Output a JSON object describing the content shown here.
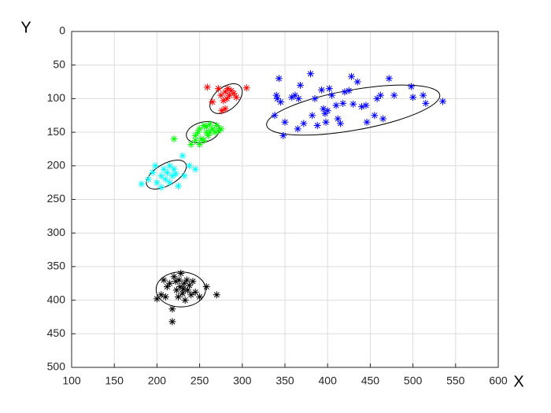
{
  "chart_data": {
    "type": "scatter",
    "x_label": "X",
    "y_label": "Y",
    "xlim": [
      100,
      600
    ],
    "ylim": [
      0,
      500
    ],
    "y_reversed": true,
    "xticks": [
      100,
      150,
      200,
      250,
      300,
      350,
      400,
      450,
      500,
      550,
      600
    ],
    "yticks": [
      0,
      50,
      100,
      150,
      200,
      250,
      300,
      350,
      400,
      450,
      500
    ],
    "grid": true,
    "marker": "asterisk",
    "series": [
      {
        "color": "#ff0000",
        "x": [
          259,
          265,
          272,
          275,
          278,
          280,
          283,
          285,
          287,
          290,
          293,
          305,
          276,
          280,
          282
        ],
        "y": [
          83,
          105,
          85,
          95,
          103,
          90,
          85,
          95,
          88,
          92,
          98,
          84,
          118,
          115,
          100
        ],
        "ellipse": {
          "cx": 281,
          "cy": 100,
          "rx": 22,
          "ry": 17,
          "angle": -40
        }
      },
      {
        "color": "#00ff00",
        "x": [
          220,
          240,
          245,
          248,
          250,
          252,
          255,
          258,
          260,
          262,
          265,
          268,
          270,
          272,
          250,
          255,
          258,
          262,
          245,
          275
        ],
        "y": [
          160,
          168,
          155,
          150,
          145,
          160,
          140,
          150,
          155,
          138,
          145,
          150,
          140,
          148,
          168,
          162,
          142,
          150,
          162,
          145
        ],
        "ellipse": {
          "cx": 254,
          "cy": 150,
          "rx": 20,
          "ry": 15,
          "angle": -15
        }
      },
      {
        "color": "#00ffff",
        "x": [
          182,
          190,
          195,
          198,
          200,
          205,
          208,
          210,
          212,
          215,
          218,
          220,
          222,
          225,
          230,
          232,
          238,
          245,
          205,
          215
        ],
        "y": [
          227,
          220,
          210,
          200,
          225,
          215,
          205,
          220,
          210,
          200,
          215,
          205,
          212,
          230,
          185,
          215,
          200,
          205,
          232,
          225
        ],
        "ellipse": {
          "cx": 211,
          "cy": 213,
          "rx": 26,
          "ry": 16,
          "angle": -30
        }
      },
      {
        "color": "#0000ff",
        "x": [
          343,
          340,
          341,
          338,
          345,
          350,
          348,
          358,
          362,
          365,
          368,
          366,
          372,
          380,
          382,
          385,
          388,
          393,
          395,
          397,
          398,
          400,
          402,
          405,
          410,
          412,
          415,
          418,
          420,
          425,
          428,
          430,
          435,
          440,
          445,
          446,
          455,
          458,
          462,
          465,
          472,
          478,
          498,
          500,
          512,
          515,
          535
        ],
        "y": [
          70,
          95,
          100,
          125,
          105,
          135,
          155,
          98,
          95,
          145,
          80,
          100,
          137,
          63,
          125,
          100,
          140,
          87,
          115,
          122,
          135,
          118,
          85,
          95,
          110,
          130,
          137,
          107,
          90,
          88,
          67,
          108,
          75,
          112,
          110,
          135,
          125,
          100,
          95,
          130,
          70,
          95,
          82,
          98,
          95,
          107,
          104
        ],
        "ellipse": {
          "cx": 430,
          "cy": 117,
          "rx": 103,
          "ry": 30,
          "angle": -10
        }
      },
      {
        "color": "#000000",
        "x": [
          200,
          205,
          208,
          212,
          215,
          218,
          218,
          220,
          222,
          223,
          225,
          227,
          228,
          230,
          232,
          233,
          235,
          236,
          238,
          240,
          242,
          245,
          250,
          258,
          270,
          210,
          226,
          231
        ],
        "y": [
          398,
          392,
          370,
          380,
          375,
          413,
          432,
          365,
          372,
          385,
          395,
          380,
          360,
          390,
          375,
          400,
          370,
          385,
          378,
          392,
          372,
          388,
          395,
          380,
          392,
          395,
          370,
          383
        ],
        "ellipse": {
          "cx": 228,
          "cy": 384,
          "rx": 29,
          "ry": 26,
          "angle": 0
        }
      }
    ]
  }
}
